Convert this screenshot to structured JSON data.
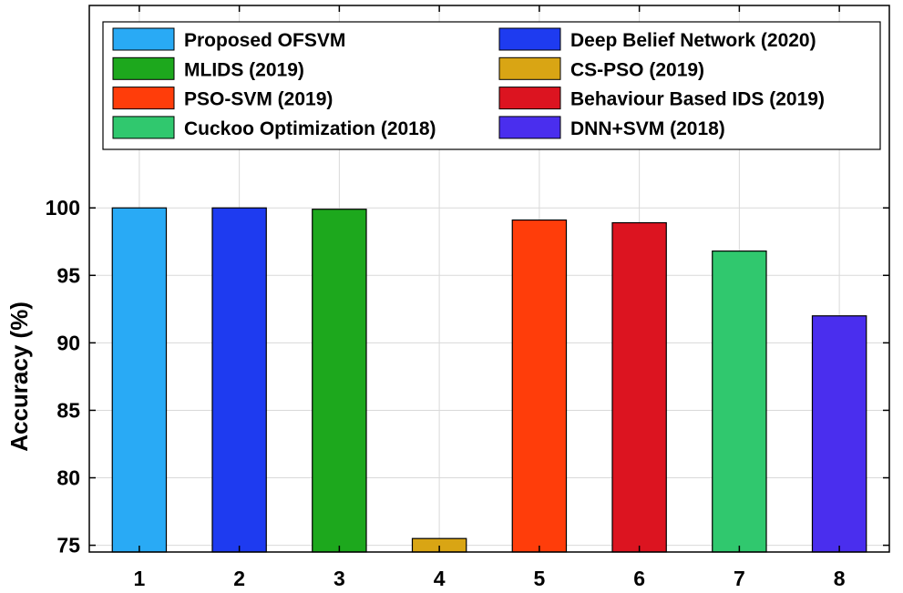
{
  "chart_data": {
    "type": "bar",
    "title": "",
    "xlabel": "",
    "ylabel": "Accuracy (%)",
    "xlim": [
      0.5,
      8.5
    ],
    "ylim": [
      74.5,
      115
    ],
    "yticks": [
      75,
      80,
      85,
      90,
      95,
      100
    ],
    "grid": true,
    "legend_position": "top",
    "categories": [
      "1",
      "2",
      "3",
      "4",
      "5",
      "6",
      "7",
      "8"
    ],
    "values": [
      100,
      100,
      99.9,
      75.5,
      99.1,
      98.9,
      96.8,
      92
    ],
    "series": [
      {
        "name": "Proposed OFSVM",
        "x": 1,
        "value": 100,
        "color": "#29AAF5"
      },
      {
        "name": "Deep Belief Network (2020)",
        "x": 2,
        "value": 100,
        "color": "#1E3BF0"
      },
      {
        "name": "MLIDS (2019)",
        "x": 3,
        "value": 99.9,
        "color": "#1DA81D"
      },
      {
        "name": "CS-PSO (2019)",
        "x": 4,
        "value": 75.5,
        "color": "#D9A514"
      },
      {
        "name": "PSO-SVM (2019)",
        "x": 5,
        "value": 99.1,
        "color": "#FF3D0A"
      },
      {
        "name": "Behaviour Based IDS (2019)",
        "x": 6,
        "value": 98.9,
        "color": "#DC1420"
      },
      {
        "name": "Cuckoo Optimization (2018)",
        "x": 7,
        "value": 96.8,
        "color": "#30C86E"
      },
      {
        "name": "DNN+SVM (2018)",
        "x": 8,
        "value": 92,
        "color": "#4A2EEE"
      }
    ],
    "legend_order": [
      0,
      1,
      2,
      3,
      4,
      5,
      6,
      7
    ]
  }
}
